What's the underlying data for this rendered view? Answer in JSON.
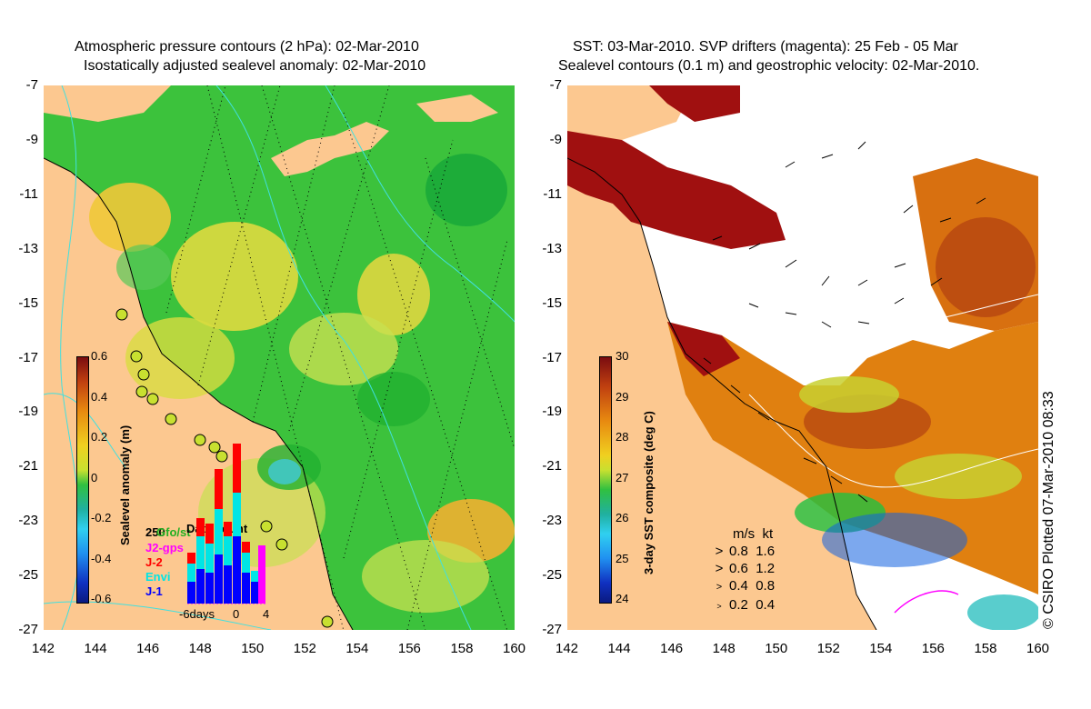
{
  "left_panel": {
    "title_line1": "Atmospheric pressure contours (2 hPa): 02-Mar-2010",
    "title_line2": "Isostatically adjusted sealevel anomaly: 02-Mar-2010",
    "colorbar": {
      "label": "Sealevel anomaly (m)",
      "ticks": [
        "0.6",
        "0.4",
        "0.2",
        "0",
        "-0.2",
        "-0.4",
        "-0.6"
      ]
    },
    "data_count": {
      "title": "Data count",
      "max_label": "250",
      "legend": [
        {
          "label": "Gfo/st",
          "color": "#22b022"
        },
        {
          "label": "J2-gps",
          "color": "#ff00ff"
        },
        {
          "label": "J-2",
          "color": "#ff0000"
        },
        {
          "label": "Envi",
          "color": "#00e5e5"
        },
        {
          "label": "J-1",
          "color": "#0000ff"
        }
      ],
      "axis_labels": [
        "-6days",
        "0",
        "4"
      ]
    }
  },
  "right_panel": {
    "title_line1": "SST: 03-Mar-2010. SVP drifters (magenta): 25 Feb - 05 Mar",
    "title_line2": "Sealevel contours (0.1 m) and geostrophic velocity: 02-Mar-2010.",
    "colorbar": {
      "label": "3-day SST composite (deg C)",
      "ticks": [
        "30",
        "29",
        "28",
        "27",
        "26",
        "25",
        "24"
      ]
    },
    "velocity_legend": {
      "header_ms": "m/s",
      "header_kt": "kt",
      "rows": [
        {
          "ms": "0.8",
          "kt": "1.6"
        },
        {
          "ms": "0.6",
          "kt": "1.2"
        },
        {
          "ms": "0.4",
          "kt": "0.8"
        },
        {
          "ms": "0.2",
          "kt": "0.4"
        }
      ]
    }
  },
  "axes": {
    "lat_labels": [
      "-7",
      "-9",
      "-11",
      "-13",
      "-15",
      "-17",
      "-19",
      "-21",
      "-23",
      "-25",
      "-27"
    ],
    "lon_labels": [
      "142",
      "144",
      "146",
      "148",
      "150",
      "152",
      "154",
      "156",
      "158",
      "160"
    ]
  },
  "copyright": "© CSIRO Plotted 07-Mar-2010 08:33",
  "colors": {
    "land": "#fcc890",
    "sst_warm": "#a01010",
    "sst_mid": "#e08010",
    "sla_green": "#28b828",
    "sla_yellow": "#f0d820"
  }
}
